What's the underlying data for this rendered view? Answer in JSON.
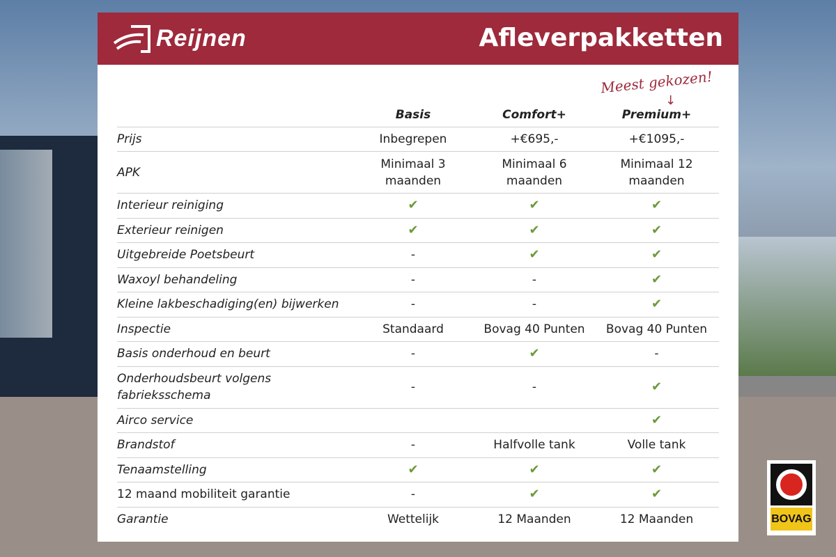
{
  "header": {
    "logo_text": "Reijnen",
    "title": "Afleverpakketten",
    "brand_color": "#9e2a3c"
  },
  "annotation": "Meest gekozen!",
  "columns": [
    "Basis",
    "Comfort+",
    "Premium+"
  ],
  "rows": [
    {
      "label": "Prijs",
      "values": [
        "Inbegrepen",
        "+€695,-",
        "+€1095,-"
      ]
    },
    {
      "label": "APK",
      "values": [
        "Minimaal 3 maanden",
        "Minimaal 6 maanden",
        "Minimaal 12 maanden"
      ]
    },
    {
      "label": "Interieur reiniging",
      "values": [
        "✔",
        "✔",
        "✔"
      ]
    },
    {
      "label": "Exterieur reinigen",
      "values": [
        "✔",
        "✔",
        "✔"
      ]
    },
    {
      "label": "Uitgebreide Poetsbeurt",
      "values": [
        "-",
        "✔",
        "✔"
      ]
    },
    {
      "label": "Waxoyl behandeling",
      "values": [
        "-",
        "-",
        "✔"
      ]
    },
    {
      "label": "Kleine lakbeschadiging(en) bijwerken",
      "values": [
        "-",
        "-",
        "✔"
      ]
    },
    {
      "label": "Inspectie",
      "values": [
        "Standaard",
        "Bovag 40 Punten",
        "Bovag 40 Punten"
      ]
    },
    {
      "label": "Basis onderhoud en beurt",
      "values": [
        "-",
        "✔",
        "-"
      ]
    },
    {
      "label": "Onderhoudsbeurt volgens fabrieksschema",
      "values": [
        "-",
        "-",
        "✔"
      ]
    },
    {
      "label": "Airco service",
      "values": [
        "",
        "",
        "✔"
      ]
    },
    {
      "label": "Brandstof",
      "values": [
        "-",
        "Halfvolle tank",
        "Volle tank"
      ]
    },
    {
      "label": "Tenaamstelling",
      "values": [
        "✔",
        "✔",
        "✔"
      ]
    },
    {
      "label": "12 maand mobiliteit garantie",
      "values": [
        "-",
        "✔",
        "✔"
      ]
    },
    {
      "label": "Garantie",
      "values": [
        "Wettelijk",
        "12 Maanden",
        "12 Maanden"
      ]
    }
  ],
  "check_color": "#6b9a3c",
  "badge": {
    "text": "BOVAG"
  }
}
